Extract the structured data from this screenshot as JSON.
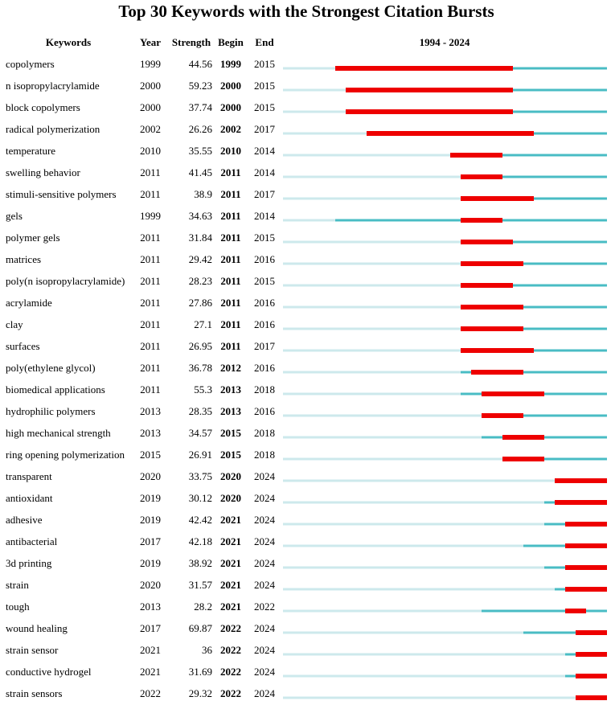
{
  "chart_data": {
    "type": "table",
    "title": "Top 30 Keywords with the Strongest Citation Bursts",
    "headers": {
      "keywords": "Keywords",
      "year": "Year",
      "strength": "Strength",
      "begin": "Begin",
      "end": "End",
      "range": "1994 - 2024"
    },
    "timeline_range": [
      1994,
      2024
    ],
    "colors": {
      "burst": "#ee0000",
      "active": "#49bcc4",
      "inactive": "#cde9ec"
    },
    "rows": [
      {
        "keyword": "copolymers",
        "year": 1999,
        "strength": "44.56",
        "begin": 1999,
        "end": 2015
      },
      {
        "keyword": "n isopropylacrylamide",
        "year": 2000,
        "strength": "59.23",
        "begin": 2000,
        "end": 2015
      },
      {
        "keyword": "block copolymers",
        "year": 2000,
        "strength": "37.74",
        "begin": 2000,
        "end": 2015
      },
      {
        "keyword": "radical polymerization",
        "year": 2002,
        "strength": "26.26",
        "begin": 2002,
        "end": 2017
      },
      {
        "keyword": "temperature",
        "year": 2010,
        "strength": "35.55",
        "begin": 2010,
        "end": 2014
      },
      {
        "keyword": "swelling behavior",
        "year": 2011,
        "strength": "41.45",
        "begin": 2011,
        "end": 2014
      },
      {
        "keyword": "stimuli-sensitive polymers",
        "year": 2011,
        "strength": "38.9",
        "begin": 2011,
        "end": 2017
      },
      {
        "keyword": "gels",
        "year": 1999,
        "strength": "34.63",
        "begin": 2011,
        "end": 2014
      },
      {
        "keyword": "polymer gels",
        "year": 2011,
        "strength": "31.84",
        "begin": 2011,
        "end": 2015
      },
      {
        "keyword": "matrices",
        "year": 2011,
        "strength": "29.42",
        "begin": 2011,
        "end": 2016
      },
      {
        "keyword": "poly(n isopropylacrylamide)",
        "year": 2011,
        "strength": "28.23",
        "begin": 2011,
        "end": 2015
      },
      {
        "keyword": "acrylamide",
        "year": 2011,
        "strength": "27.86",
        "begin": 2011,
        "end": 2016
      },
      {
        "keyword": "clay",
        "year": 2011,
        "strength": "27.1",
        "begin": 2011,
        "end": 2016
      },
      {
        "keyword": "surfaces",
        "year": 2011,
        "strength": "26.95",
        "begin": 2011,
        "end": 2017
      },
      {
        "keyword": "poly(ethylene glycol)",
        "year": 2011,
        "strength": "36.78",
        "begin": 2012,
        "end": 2016
      },
      {
        "keyword": "biomedical applications",
        "year": 2011,
        "strength": "55.3",
        "begin": 2013,
        "end": 2018
      },
      {
        "keyword": "hydrophilic polymers",
        "year": 2013,
        "strength": "28.35",
        "begin": 2013,
        "end": 2016
      },
      {
        "keyword": "high mechanical strength",
        "year": 2013,
        "strength": "34.57",
        "begin": 2015,
        "end": 2018
      },
      {
        "keyword": "ring opening polymerization",
        "year": 2015,
        "strength": "26.91",
        "begin": 2015,
        "end": 2018
      },
      {
        "keyword": "transparent",
        "year": 2020,
        "strength": "33.75",
        "begin": 2020,
        "end": 2024
      },
      {
        "keyword": "antioxidant",
        "year": 2019,
        "strength": "30.12",
        "begin": 2020,
        "end": 2024
      },
      {
        "keyword": "adhesive",
        "year": 2019,
        "strength": "42.42",
        "begin": 2021,
        "end": 2024
      },
      {
        "keyword": "antibacterial",
        "year": 2017,
        "strength": "42.18",
        "begin": 2021,
        "end": 2024
      },
      {
        "keyword": "3d printing",
        "year": 2019,
        "strength": "38.92",
        "begin": 2021,
        "end": 2024
      },
      {
        "keyword": "strain",
        "year": 2020,
        "strength": "31.57",
        "begin": 2021,
        "end": 2024
      },
      {
        "keyword": "tough",
        "year": 2013,
        "strength": "28.2",
        "begin": 2021,
        "end": 2022
      },
      {
        "keyword": "wound healing",
        "year": 2017,
        "strength": "69.87",
        "begin": 2022,
        "end": 2024
      },
      {
        "keyword": "strain sensor",
        "year": 2021,
        "strength": "36",
        "begin": 2022,
        "end": 2024
      },
      {
        "keyword": "conductive hydrogel",
        "year": 2021,
        "strength": "31.69",
        "begin": 2022,
        "end": 2024
      },
      {
        "keyword": "strain sensors",
        "year": 2022,
        "strength": "29.32",
        "begin": 2022,
        "end": 2024
      }
    ]
  }
}
